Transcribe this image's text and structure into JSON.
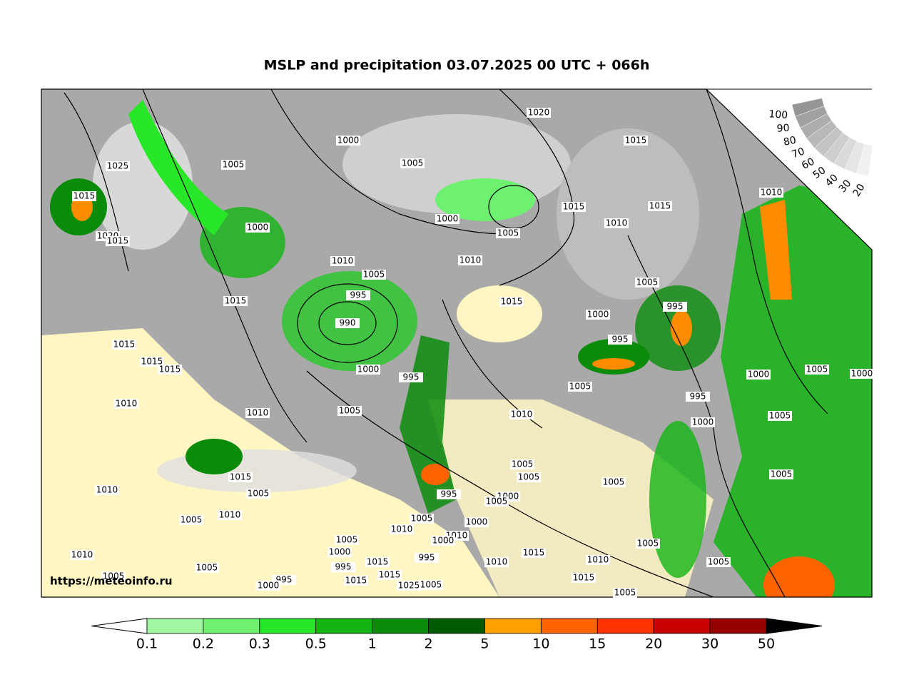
{
  "title": "MSLP and precipitation 03.07.2025 00 UTC + 066h",
  "watermark": "https://meteoinfo.ru",
  "isobar_labels": [
    1025,
    1015,
    1020,
    1015,
    1005,
    1000,
    1005,
    1020,
    1015,
    1000,
    1005,
    1015,
    1010,
    1015,
    1010,
    1000,
    1010,
    1005,
    1010,
    995,
    1015,
    990,
    1015,
    1005,
    995,
    1000,
    995,
    1015,
    1015,
    1015,
    1000,
    995,
    1005,
    1000,
    1005,
    1000,
    995,
    1010,
    1010,
    1005,
    1010,
    1000,
    1005,
    1005,
    1005,
    1015,
    1005,
    1010,
    995,
    1000,
    1005,
    1005,
    1005,
    1010,
    1005,
    1005,
    1010,
    1000,
    1010,
    1000,
    1005,
    1000,
    1010,
    995,
    1015,
    1005,
    1015,
    995,
    1010,
    1010,
    1005,
    1005,
    1005,
    1015,
    995,
    1000,
    1015,
    1025,
    1005,
    1015,
    1005
  ],
  "cloud_scale": {
    "labels": [
      100,
      90,
      80,
      70,
      60,
      50,
      40,
      30,
      20
    ]
  },
  "colorbar": {
    "ticks": [
      0.1,
      0.2,
      0.3,
      0.5,
      1,
      2,
      5,
      10,
      15,
      20,
      30,
      50
    ],
    "colors": [
      "#a0f5a0",
      "#6ef070",
      "#28e628",
      "#14b414",
      "#0a8c0a",
      "#005a00",
      "#ffa000",
      "#ff6400",
      "#ff3200",
      "#c80000",
      "#960000"
    ]
  }
}
